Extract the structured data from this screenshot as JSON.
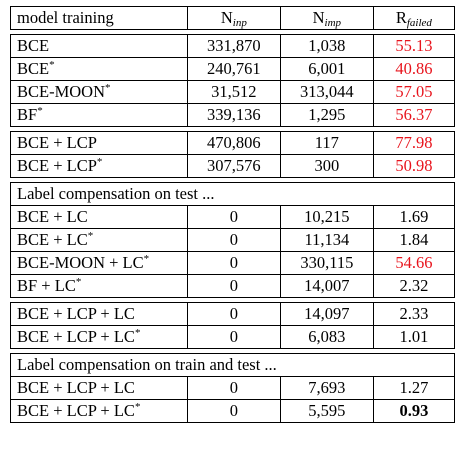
{
  "header": {
    "col_model": "model training",
    "n_inp_base": "N",
    "n_inp_sub": "inp",
    "n_imp_base": "N",
    "n_imp_sub": "imp",
    "r_failed_base": "R",
    "r_failed_sub": "failed"
  },
  "groups": [
    {
      "rows": [
        {
          "model": "BCE",
          "star": "",
          "n_inp": "331,870",
          "n_imp": "1,038",
          "r_failed": "55.13",
          "red": true,
          "bold": false
        },
        {
          "model": "BCE",
          "star": "*",
          "n_inp": "240,761",
          "n_imp": "6,001",
          "r_failed": "40.86",
          "red": true,
          "bold": false
        },
        {
          "model": "BCE-MOON",
          "star": "*",
          "n_inp": "31,512",
          "n_imp": "313,044",
          "r_failed": "57.05",
          "red": true,
          "bold": false
        },
        {
          "model": "BF",
          "star": "*",
          "n_inp": "339,136",
          "n_imp": "1,295",
          "r_failed": "56.37",
          "red": true,
          "bold": false
        }
      ]
    },
    {
      "rows": [
        {
          "model": "BCE + LCP",
          "star": "",
          "n_inp": "470,806",
          "n_imp": "117",
          "r_failed": "77.98",
          "red": true,
          "bold": false
        },
        {
          "model": "BCE + LCP",
          "star": "*",
          "n_inp": "307,576",
          "n_imp": "300",
          "r_failed": "50.98",
          "red": true,
          "bold": false
        }
      ]
    },
    {
      "section": "Label compensation on test ...",
      "rows": [
        {
          "model": "BCE + LC",
          "star": "",
          "n_inp": "0",
          "n_imp": "10,215",
          "r_failed": "1.69",
          "red": false,
          "bold": false
        },
        {
          "model": "BCE + LC",
          "star": "*",
          "n_inp": "0",
          "n_imp": "11,134",
          "r_failed": "1.84",
          "red": false,
          "bold": false
        },
        {
          "model": "BCE-MOON + LC",
          "star": "*",
          "n_inp": "0",
          "n_imp": "330,115",
          "r_failed": "54.66",
          "red": true,
          "bold": false
        },
        {
          "model": "BF + LC",
          "star": "*",
          "n_inp": "0",
          "n_imp": "14,007",
          "r_failed": "2.32",
          "red": false,
          "bold": false
        }
      ]
    },
    {
      "rows": [
        {
          "model": "BCE + LCP + LC",
          "star": "",
          "n_inp": "0",
          "n_imp": "14,097",
          "r_failed": "2.33",
          "red": false,
          "bold": false
        },
        {
          "model": "BCE + LCP + LC",
          "star": "*",
          "n_inp": "0",
          "n_imp": "6,083",
          "r_failed": "1.01",
          "red": false,
          "bold": false
        }
      ]
    },
    {
      "section": "Label compensation on train and test ...",
      "rows": [
        {
          "model": "BCE + LCP + LC",
          "star": "",
          "n_inp": "0",
          "n_imp": "7,693",
          "r_failed": "1.27",
          "red": false,
          "bold": false
        },
        {
          "model": "BCE + LCP + LC",
          "star": "*",
          "n_inp": "0",
          "n_imp": "5,595",
          "r_failed": "0.93",
          "red": false,
          "bold": true
        }
      ]
    }
  ],
  "colors": {
    "highlight": "#e8141d"
  }
}
